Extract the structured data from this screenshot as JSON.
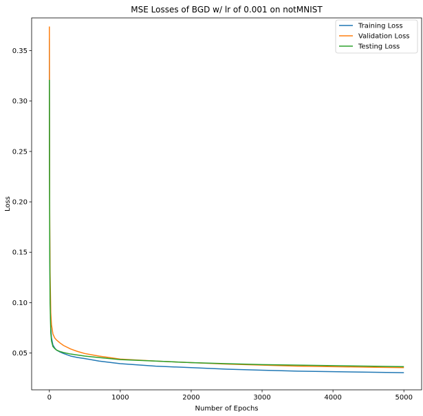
{
  "chart_data": {
    "type": "line",
    "title": "MSE Losses of BGD w/ lr of 0.001 on notMNIST",
    "xlabel": "Number of Epochs",
    "ylabel": "Loss",
    "xlim": [
      -250,
      5250
    ],
    "ylim": [
      0.0135,
      0.3825
    ],
    "xticks": [
      0,
      1000,
      2000,
      3000,
      4000,
      5000
    ],
    "yticks": [
      0.05,
      0.1,
      0.15,
      0.2,
      0.25,
      0.3,
      0.35
    ],
    "legend_position": "top-right",
    "grid": false,
    "series": [
      {
        "name": "Training Loss",
        "color": "#1f77b4",
        "x": [
          0,
          2,
          5,
          10,
          20,
          30,
          50,
          75,
          100,
          150,
          200,
          300,
          400,
          500,
          700,
          1000,
          1500,
          2000,
          2500,
          3000,
          3500,
          4000,
          4500,
          5000
        ],
        "y": [
          0.362,
          0.26,
          0.17,
          0.11,
          0.075,
          0.065,
          0.058,
          0.055,
          0.053,
          0.051,
          0.0495,
          0.047,
          0.0455,
          0.0445,
          0.042,
          0.0395,
          0.037,
          0.0355,
          0.034,
          0.033,
          0.032,
          0.0315,
          0.031,
          0.0305
        ]
      },
      {
        "name": "Validation Loss",
        "color": "#ff7f0e",
        "x": [
          0,
          2,
          5,
          10,
          20,
          30,
          50,
          75,
          100,
          150,
          200,
          300,
          400,
          500,
          700,
          1000,
          1500,
          2000,
          2500,
          3000,
          3500,
          4000,
          4500,
          5000
        ],
        "y": [
          0.374,
          0.28,
          0.19,
          0.13,
          0.09,
          0.078,
          0.069,
          0.065,
          0.063,
          0.06,
          0.0575,
          0.054,
          0.0515,
          0.0495,
          0.047,
          0.044,
          0.042,
          0.0405,
          0.039,
          0.038,
          0.037,
          0.0365,
          0.036,
          0.0355
        ]
      },
      {
        "name": "Testing Loss",
        "color": "#2ca02c",
        "x": [
          0,
          2,
          5,
          10,
          20,
          30,
          50,
          75,
          100,
          150,
          200,
          300,
          400,
          500,
          700,
          1000,
          1500,
          2000,
          2500,
          3000,
          3500,
          4000,
          4500,
          5000
        ],
        "y": [
          0.321,
          0.23,
          0.15,
          0.1,
          0.07,
          0.062,
          0.0565,
          0.0545,
          0.053,
          0.0515,
          0.0505,
          0.049,
          0.048,
          0.047,
          0.0455,
          0.0435,
          0.042,
          0.0405,
          0.0395,
          0.0385,
          0.038,
          0.0375,
          0.037,
          0.0365
        ]
      }
    ]
  }
}
